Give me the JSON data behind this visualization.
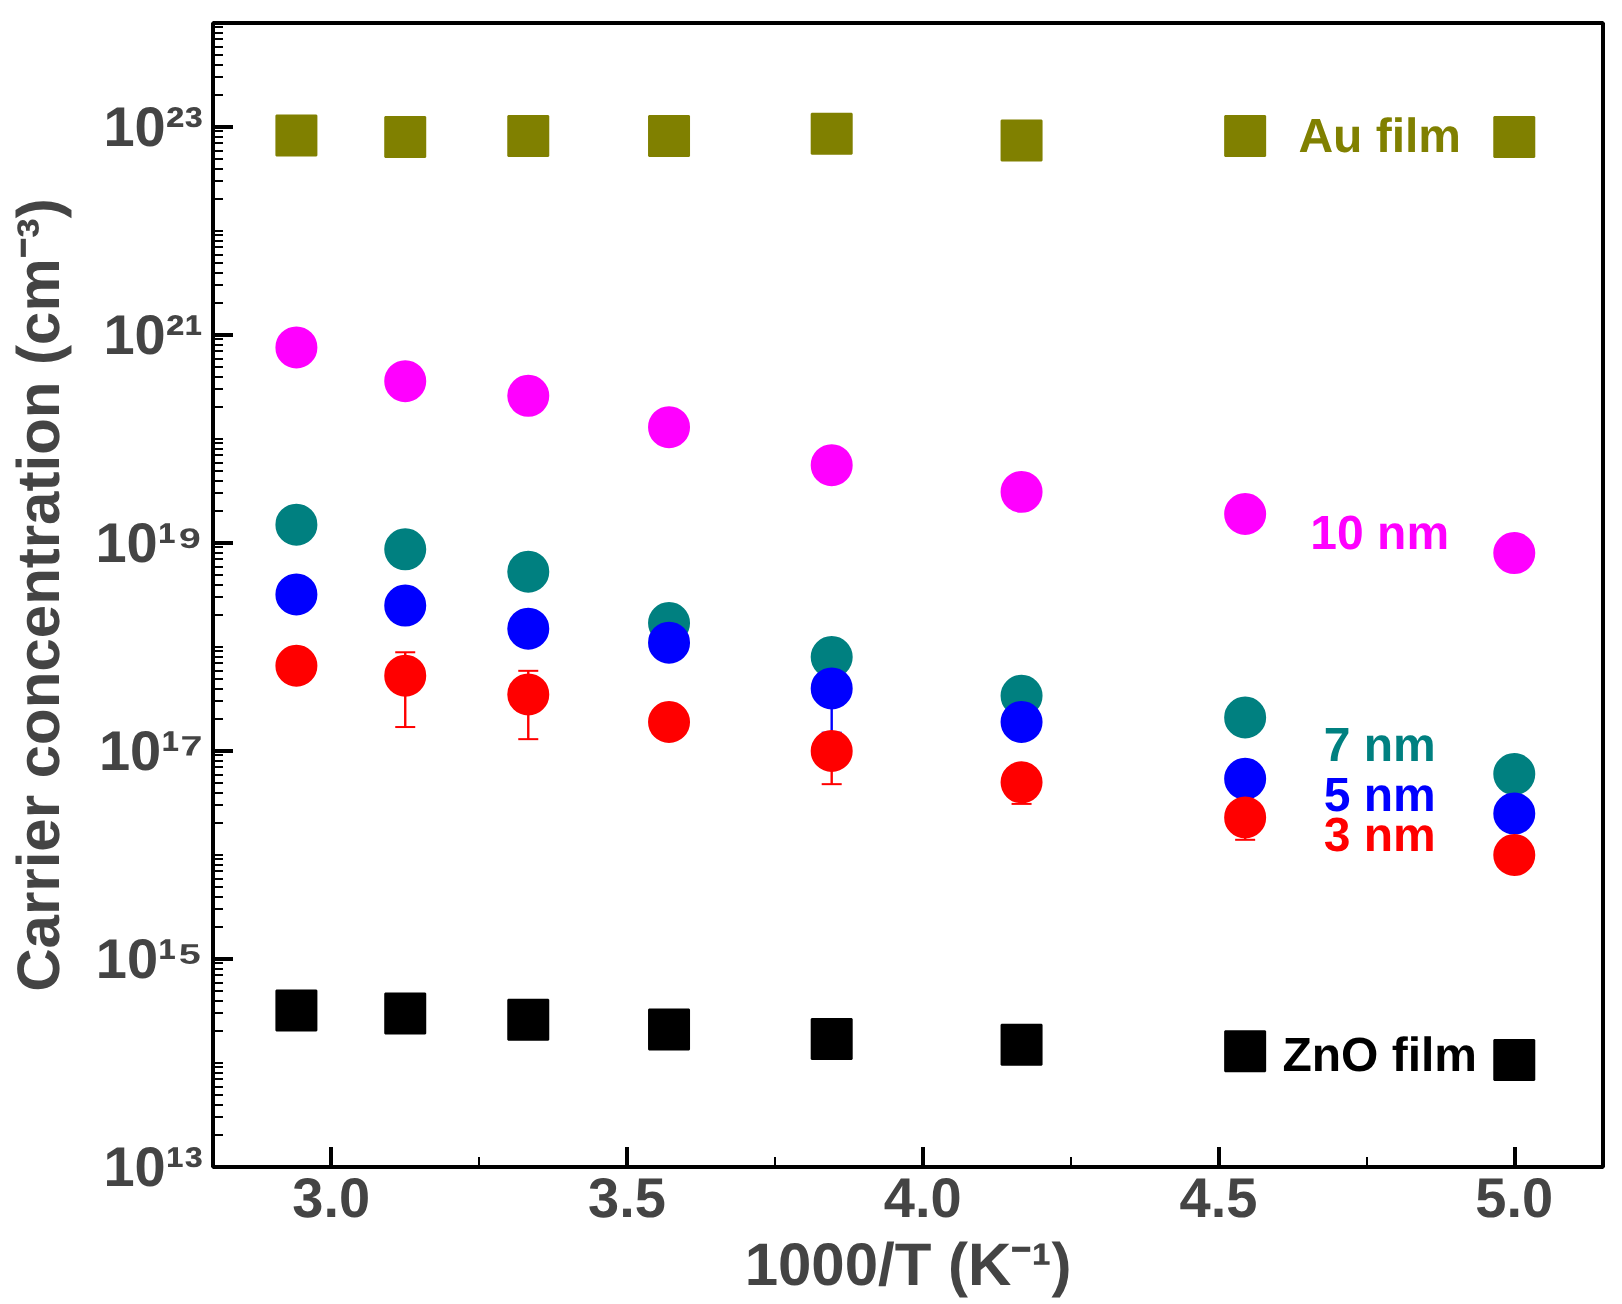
{
  "chart_data": {
    "type": "scatter",
    "xlabel": "1000/T (K⁻¹)",
    "ylabel": "Carrier concentration (cm⁻³)",
    "log": "y",
    "grid": false,
    "x": [
      2.941,
      3.125,
      3.333,
      3.571,
      3.846,
      4.167,
      4.545,
      5.0
    ],
    "xlim": [
      2.8,
      5.15
    ],
    "xticks": [
      {
        "value": 3.0,
        "label": "3.0"
      },
      3.5,
      {
        "value": 4.0,
        "label": "4.0"
      },
      4.5,
      {
        "value": 5.0,
        "label": "5.0"
      }
    ],
    "ylim": [
      10000000000000.0,
      1e+24
    ],
    "yticks": [
      {
        "value": 10000000000000.0,
        "label": "10¹³"
      },
      {
        "value": 1000000000000000.0,
        "label": "10¹⁵"
      },
      {
        "value": 1e+17,
        "label": "10¹⁷"
      },
      {
        "value": 1e+19,
        "label": "10¹⁹"
      },
      {
        "value": 1e+21,
        "label": "10²¹"
      },
      {
        "value": 1e+23,
        "label": "10²³"
      }
    ],
    "series": [
      {
        "name": "Au film",
        "color": "#808000",
        "marker": "square",
        "values": [
          8.3e+22,
          8e+22,
          8.2e+22,
          8.2e+22,
          8.6e+22,
          7.4e+22,
          8.2e+22,
          8e+22
        ]
      },
      {
        "name": "10 nm",
        "color": "#ff00ff",
        "marker": "circle",
        "values": [
          7.6e+20,
          3.6e+20,
          2.6e+20,
          1.3e+20,
          5.6e+19,
          3.1e+19,
          1.9e+19,
          8e+18
        ]
      },
      {
        "name": "7 nm",
        "color": "#008080",
        "marker": "circle",
        "values": [
          1.5e+19,
          8.7e+18,
          5.3e+18,
          1.7e+18,
          8e+17,
          3.4e+17,
          2.1e+17,
          6e+16
        ]
      },
      {
        "name": "5 nm",
        "color": "#0000ff",
        "marker": "circle",
        "values": [
          3.2e+18,
          2.5e+18,
          1.5e+18,
          1.1e+18,
          4e+17,
          1.9e+17,
          5.4e+16,
          2.5e+16
        ],
        "errors": [
          null,
          null,
          null,
          null,
          [
            1.5e+17,
            4e+17
          ],
          null,
          null,
          null
        ]
      },
      {
        "name": "3 nm",
        "color": "#ff0000",
        "marker": "circle",
        "values": [
          6.6e+17,
          5.3e+17,
          3.5e+17,
          1.9e+17,
          1e+17,
          5e+16,
          2.3e+16,
          1e+16
        ],
        "errors": [
          [
            4.6e+17,
            6.6e+17
          ],
          [
            1.7e+17,
            8.9e+17
          ],
          [
            1.3e+17,
            5.9e+17
          ],
          [
            1.3e+17,
            1.9e+17
          ],
          [
            4.8e+16,
            1e+17
          ],
          [
            3.1e+16,
            5e+16
          ],
          [
            1.4e+16,
            2.3e+16
          ],
          null
        ]
      },
      {
        "name": "ZnO film",
        "color": "#000000",
        "marker": "square",
        "values": [
          320000000000000.0,
          300000000000000.0,
          260000000000000.0,
          210000000000000.0,
          170000000000000.0,
          150000000000000.0,
          130000000000000.0,
          107000000000000.0
        ]
      }
    ]
  }
}
